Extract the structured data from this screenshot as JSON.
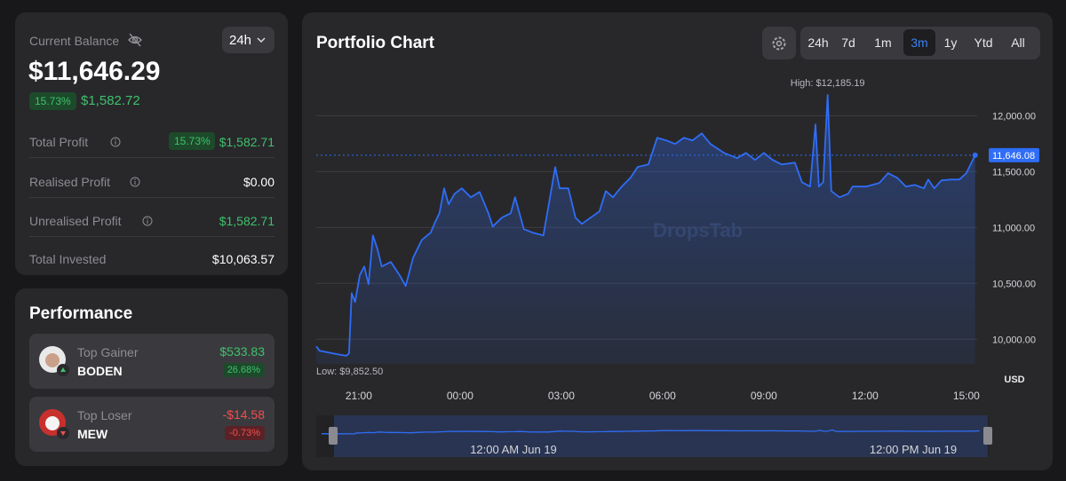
{
  "balance": {
    "label": "Current Balance",
    "period": "24h",
    "amount": "$11,646.29",
    "change_pct": "15.73%",
    "change_value": "$1,582.72"
  },
  "stats": [
    {
      "label": "Total Profit",
      "badge": "15.73%",
      "value": "$1,582.71",
      "tone": "green"
    },
    {
      "label": "Realised Profit",
      "value": "$0.00",
      "tone": "white"
    },
    {
      "label": "Unrealised Profit",
      "value": "$1,582.71",
      "tone": "green"
    },
    {
      "label": "Total Invested",
      "value": "$10,063.57",
      "tone": "white"
    }
  ],
  "performance": {
    "title": "Performance",
    "items": [
      {
        "label": "Top Gainer",
        "symbol": "BODEN",
        "value": "$533.83",
        "pct": "26.68%",
        "tone": "green"
      },
      {
        "label": "Top Loser",
        "symbol": "MEW",
        "value": "-$14.58",
        "pct": "-0.73%",
        "tone": "red"
      }
    ]
  },
  "portfolio": {
    "title": "Portfolio Chart",
    "ranges": [
      "24h",
      "7d",
      "1m",
      "3m",
      "1y",
      "Ytd",
      "All"
    ],
    "active_range": 3
  },
  "chart_data": {
    "type": "line",
    "color": "#2f6df6",
    "x": [
      -1.26,
      -1.16,
      -0.76,
      -0.37,
      -0.29,
      -0.21,
      -0.11,
      0.03,
      0.16,
      0.29,
      0.42,
      0.55,
      0.68,
      0.95,
      1.21,
      1.39,
      1.61,
      1.87,
      2.13,
      2.26,
      2.39,
      2.53,
      2.66,
      2.84,
      3.05,
      3.32,
      3.58,
      3.84,
      3.97,
      4.24,
      4.5,
      4.63,
      4.89,
      5.16,
      5.47,
      5.63,
      5.82,
      5.95,
      6.21,
      6.42,
      6.61,
      6.87,
      7.13,
      7.32,
      7.53,
      7.79,
      8.05,
      8.26,
      8.58,
      8.84,
      9.11,
      9.37,
      9.63,
      9.89,
      10.16,
      10.42,
      10.82,
      11.21,
      11.47,
      11.74,
      12,
      12.26,
      12.53,
      12.92,
      13.13,
      13.37,
      13.53,
      13.63,
      13.76,
      13.89,
      14,
      14.24,
      14.5,
      14.63,
      15.03,
      15.42,
      15.68,
      15.95,
      16.21,
      16.47,
      16.74,
      16.87,
      17.05,
      17.26,
      17.53,
      17.79,
      18,
      18.26
    ],
    "values": [
      9936,
      9897,
      9873,
      9852.5,
      9873,
      10413,
      10333,
      10572,
      10651,
      10492,
      10929,
      10810,
      10651,
      10691,
      10572,
      10476,
      10730,
      10889,
      10953,
      11048,
      11127,
      11350,
      11207,
      11302,
      11350,
      11270,
      11318,
      11127,
      11008,
      11088,
      11127,
      11270,
      10985,
      10953,
      10929,
      11207,
      11540,
      11350,
      11350,
      11088,
      11032,
      11088,
      11143,
      11326,
      11270,
      11366,
      11445,
      11540,
      11564,
      11802,
      11779,
      11747,
      11802,
      11779,
      11842,
      11747,
      11667,
      11620,
      11667,
      11604,
      11667,
      11604,
      11564,
      11580,
      11405,
      11366,
      11921,
      11366,
      11405,
      12185.19,
      11326,
      11270,
      11302,
      11366,
      11366,
      11397,
      11485,
      11445,
      11366,
      11380,
      11350,
      11429,
      11350,
      11421,
      11429,
      11429,
      11485,
      11646.08
    ],
    "xlim": [
      -1.26,
      18.32
    ],
    "xticks": [
      {
        "value": 0,
        "label": "21:00"
      },
      {
        "value": 3,
        "label": "00:00"
      },
      {
        "value": 6,
        "label": "03:00"
      },
      {
        "value": 9,
        "label": "06:00"
      },
      {
        "value": 12,
        "label": "09:00"
      },
      {
        "value": 15,
        "label": "12:00"
      },
      {
        "value": 18,
        "label": "15:00"
      }
    ],
    "ylim": [
      9780,
      12360
    ],
    "yticks": [
      {
        "value": 10000,
        "label": "10,000.00"
      },
      {
        "value": 10500,
        "label": "10,500.00"
      },
      {
        "value": 11000,
        "label": "11,000.00"
      },
      {
        "value": 11500,
        "label": "11,500.00"
      },
      {
        "value": 12000,
        "label": "12,000.00"
      }
    ],
    "grid": true,
    "y_unit": "USD",
    "annotations": {
      "high": "High: $12,185.19",
      "low": "Low: $9,852.50",
      "last": "11,646.08"
    },
    "watermark": "DropsTab",
    "navigator_labels": [
      "12:00 AM Jun 19",
      "12:00 PM Jun 19"
    ]
  }
}
